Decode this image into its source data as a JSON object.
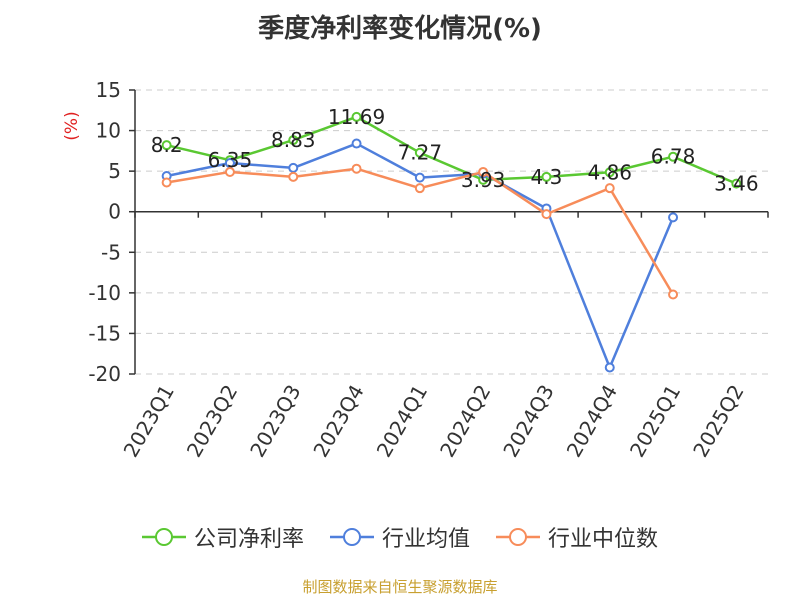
{
  "title": "季度净利率变化情况(%)",
  "source": "制图数据来自恒生聚源数据库",
  "colors": {
    "company": "#5ac832",
    "industry_avg": "#4f7fdc",
    "industry_median": "#f78c5a",
    "axis_unit": "#e02020"
  },
  "chart_data": {
    "type": "line",
    "title": "季度净利率变化情况(%)",
    "ylabel": "(%)",
    "xlabel": "",
    "ylim": [
      -20,
      15
    ],
    "yticks": [
      15,
      10,
      5,
      0,
      -5,
      -10,
      -15,
      -20
    ],
    "grid": true,
    "legend_position": "bottom",
    "categories": [
      "2023Q1",
      "2023Q2",
      "2023Q3",
      "2023Q4",
      "2024Q1",
      "2024Q2",
      "2024Q3",
      "2024Q4",
      "2025Q1",
      "2025Q2"
    ],
    "series": [
      {
        "name": "公司净利率",
        "color": "#5ac832",
        "show_labels": true,
        "values": [
          8.2,
          6.35,
          8.83,
          11.69,
          7.27,
          3.93,
          4.3,
          4.86,
          6.78,
          3.46
        ],
        "labels": [
          "8.2",
          "6.35",
          "8.83",
          "11.69",
          "7.27",
          "3.93",
          "4.3",
          "4.86",
          "6.78",
          "3.46"
        ]
      },
      {
        "name": "行业均值",
        "color": "#4f7fdc",
        "show_labels": false,
        "values": [
          4.4,
          6.0,
          5.4,
          8.4,
          4.2,
          4.7,
          0.4,
          -19.2,
          -0.7,
          null
        ]
      },
      {
        "name": "行业中位数",
        "color": "#f78c5a",
        "show_labels": false,
        "values": [
          3.6,
          4.9,
          4.3,
          5.3,
          2.9,
          4.9,
          -0.3,
          2.9,
          -10.2,
          null
        ]
      }
    ]
  }
}
